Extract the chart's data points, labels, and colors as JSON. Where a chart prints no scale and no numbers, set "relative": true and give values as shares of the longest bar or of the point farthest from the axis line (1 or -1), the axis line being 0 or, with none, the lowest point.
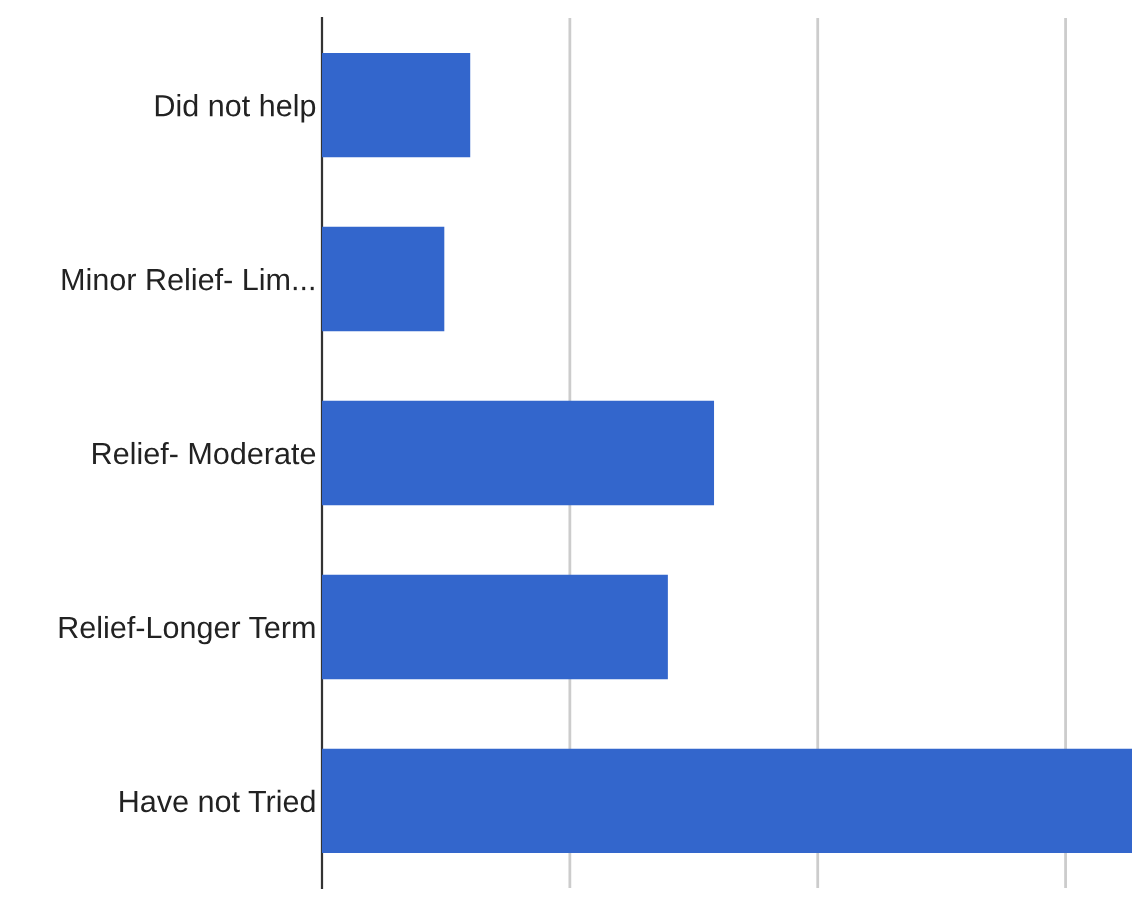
{
  "chart_data": {
    "type": "bar",
    "orientation": "horizontal",
    "relative": true,
    "categories": [
      "Did not help",
      "Minor Relief- Lim...",
      "Relief- Moderate",
      "Relief-Longer Term",
      "Have not Tried"
    ],
    "values": [
      0.183,
      0.151,
      0.484,
      0.427,
      1
    ],
    "color": "#3366cc",
    "grid": "x",
    "legend": false
  }
}
